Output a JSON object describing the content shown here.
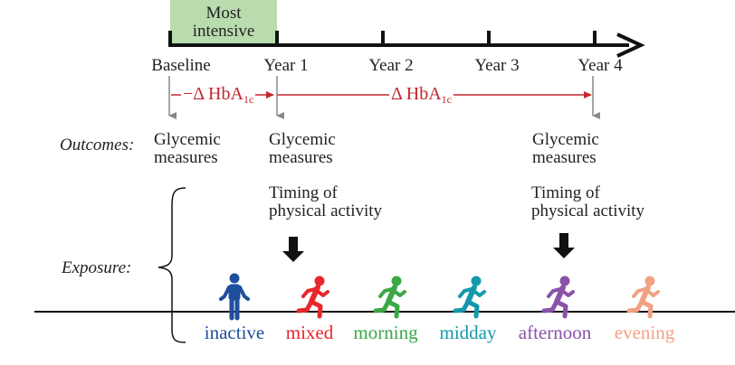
{
  "timeline": {
    "highlight_label": "Most\nintensive",
    "highlight_color": "#b9dcae",
    "years": [
      "Baseline",
      "Year 1",
      "Year 2",
      "Year 3",
      "Year 4"
    ]
  },
  "delta": {
    "label_main": "−Δ HbA",
    "label_sub": "1c",
    "label2_main": "Δ HbA",
    "label2_sub": "1c",
    "color": "#c0272d"
  },
  "outcomes": {
    "row_label": "Outcomes:",
    "measure_text": "Glycemic\nmeasures"
  },
  "timing_text": "Timing of\nphysical activity",
  "exposure_label": "Exposure:",
  "categories": [
    {
      "label": "inactive",
      "color": "#1f4e9c",
      "icon": "standing-person-icon"
    },
    {
      "label": "mixed",
      "color": "#e8262b",
      "icon": "running-person-icon"
    },
    {
      "label": "morning",
      "color": "#3aa845",
      "icon": "running-person-icon"
    },
    {
      "label": "midday",
      "color": "#1598ab",
      "icon": "running-person-icon"
    },
    {
      "label": "afternoon",
      "color": "#8a52a8",
      "icon": "running-person-icon"
    },
    {
      "label": "evening",
      "color": "#f2a283",
      "icon": "running-person-icon"
    }
  ]
}
